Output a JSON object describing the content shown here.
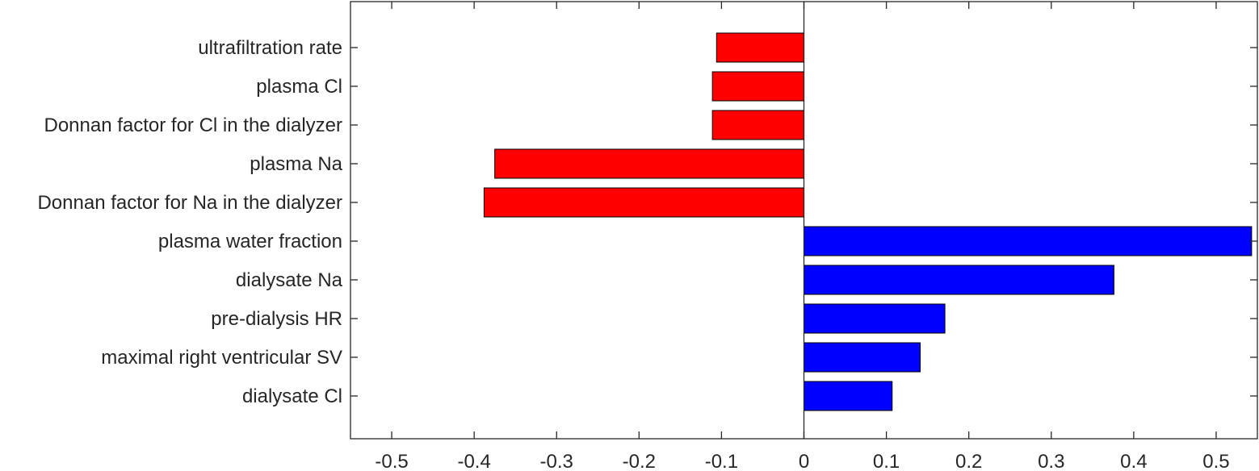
{
  "chart_data": {
    "type": "bar",
    "orientation": "horizontal",
    "title": "",
    "xlabel": "",
    "ylabel": "",
    "xlim": [
      -0.55,
      0.55
    ],
    "xticks": [
      -0.5,
      -0.4,
      -0.3,
      -0.2,
      -0.1,
      0,
      0.1,
      0.2,
      0.3,
      0.4,
      0.5
    ],
    "xtick_labels": [
      "-0.5",
      "-0.4",
      "-0.3",
      "-0.2",
      "-0.1",
      "0",
      "0.1",
      "0.2",
      "0.3",
      "0.4",
      "0.5"
    ],
    "categories": [
      "ultrafiltration rate",
      "plasma Cl",
      "Donnan factor for Cl in the dialyzer",
      "plasma Na",
      "Donnan factor for Na in the dialyzer",
      "plasma water fraction",
      "dialysate Na",
      "pre-dialysis HR",
      "maximal right ventricular SV",
      "dialysate Cl"
    ],
    "values": [
      -0.106,
      -0.111,
      -0.111,
      -0.375,
      -0.388,
      0.543,
      0.376,
      0.171,
      0.141,
      0.107
    ],
    "colors": {
      "negative": "#ff0000",
      "positive": "#0000ff",
      "axis": "#262626",
      "bar_edge": "#000000"
    },
    "grid": false,
    "legend": "none"
  }
}
